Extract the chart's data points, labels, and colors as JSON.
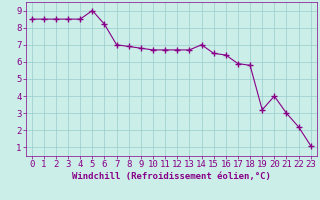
{
  "x": [
    0,
    1,
    2,
    3,
    4,
    5,
    6,
    7,
    8,
    9,
    10,
    11,
    12,
    13,
    14,
    15,
    16,
    17,
    18,
    19,
    20,
    21,
    22,
    23
  ],
  "y": [
    8.5,
    8.5,
    8.5,
    8.5,
    8.5,
    9.0,
    8.2,
    7.0,
    6.9,
    6.8,
    6.7,
    6.7,
    6.7,
    6.7,
    7.0,
    6.5,
    6.4,
    5.9,
    5.8,
    3.2,
    4.0,
    3.0,
    2.2,
    1.1
  ],
  "line_color": "#880088",
  "marker": "+",
  "marker_size": 4,
  "marker_linewidth": 1.0,
  "bg_color": "#cceee8",
  "grid_color": "#99cccc",
  "xlabel": "Windchill (Refroidissement éolien,°C)",
  "xlim": [
    -0.5,
    23.5
  ],
  "ylim": [
    0.5,
    9.5
  ],
  "xtick_labels": [
    "0",
    "1",
    "2",
    "3",
    "4",
    "5",
    "6",
    "7",
    "8",
    "9",
    "10",
    "11",
    "12",
    "13",
    "14",
    "15",
    "16",
    "17",
    "18",
    "19",
    "20",
    "21",
    "22",
    "23"
  ],
  "ytick_values": [
    1,
    2,
    3,
    4,
    5,
    6,
    7,
    8,
    9
  ],
  "xlabel_color": "#880088",
  "tick_color": "#880088",
  "axis_label_fontsize": 6.5,
  "tick_fontsize": 6.5
}
